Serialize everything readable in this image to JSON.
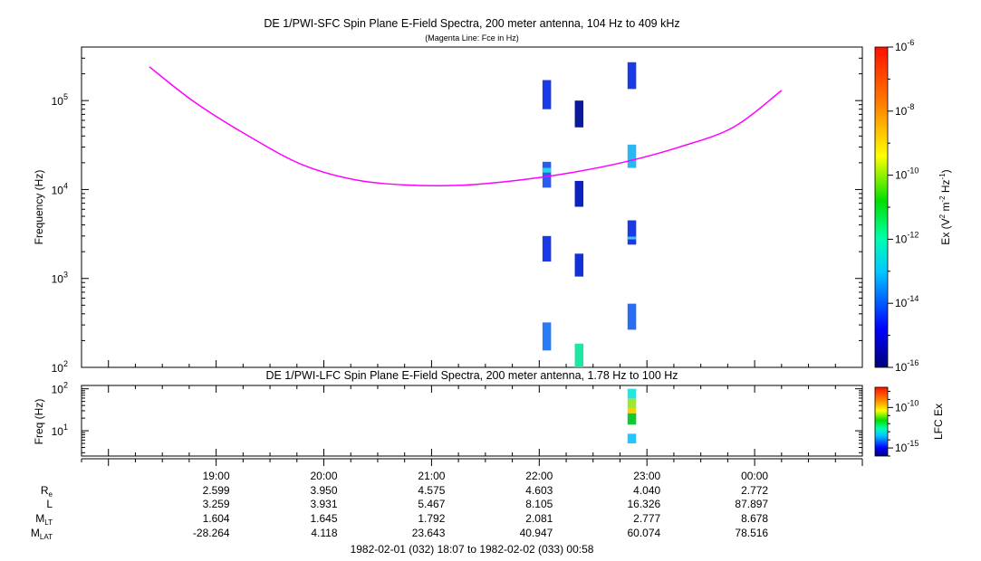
{
  "chart_data": [
    {
      "type": "heatmap",
      "title": "DE 1/PWI-SFC  Spin Plane E-Field Spectra, 200 meter antenna, 104 Hz to 409 kHz",
      "subtitle": "(Magenta Line: Fce in Hz)",
      "ylabel": "Frequency (Hz)",
      "yscale": "log",
      "ylim": [
        100,
        400000
      ],
      "yticks": [
        {
          "v": 100,
          "e": "2"
        },
        {
          "v": 1000,
          "e": "3"
        },
        {
          "v": 10000,
          "e": "4"
        },
        {
          "v": 100000,
          "e": "5"
        }
      ],
      "xlim": [
        -1.25,
        6.0
      ],
      "colorbar": {
        "label_prefix": "Ex (V",
        "label_sup1": "2",
        "label_mid": " m",
        "label_sup2": "-2",
        "label_mid2": " Hz",
        "label_sup3": "-1",
        "label_suffix": ")",
        "scale": "log",
        "range_exp": [
          -16,
          -6
        ],
        "ticks": [
          {
            "e": "-6",
            "v": -6
          },
          {
            "e": "-8",
            "v": -8
          },
          {
            "e": "-10",
            "v": -10
          },
          {
            "e": "-12",
            "v": -12
          },
          {
            "e": "-14",
            "v": -14
          },
          {
            "e": "-16",
            "v": -16
          }
        ]
      },
      "fce_line": {
        "color": "#ff00ff",
        "name": "Fce",
        "points": [
          [
            -0.62,
            240000
          ],
          [
            -0.2,
            96000
          ],
          [
            0.3,
            40000
          ],
          [
            0.8,
            19000
          ],
          [
            1.3,
            12800
          ],
          [
            1.8,
            11200
          ],
          [
            2.3,
            11200
          ],
          [
            2.8,
            12700
          ],
          [
            3.3,
            15500
          ],
          [
            3.8,
            20500
          ],
          [
            4.3,
            30000
          ],
          [
            4.8,
            50000
          ],
          [
            5.25,
            130000
          ]
        ]
      },
      "cells": [
        {
          "x0": 3.03,
          "x1": 3.11,
          "y0": 80000,
          "y1": 170000,
          "color": "#1a3ae6"
        },
        {
          "x0": 3.03,
          "x1": 3.11,
          "y0": 10500,
          "y1": 20500,
          "color": "#2a5cf2"
        },
        {
          "x0": 3.03,
          "x1": 3.11,
          "y0": 15500,
          "y1": 17500,
          "color": "#2ad4e6"
        },
        {
          "x0": 3.03,
          "x1": 3.11,
          "y0": 1550,
          "y1": 3000,
          "color": "#1a3ae6"
        },
        {
          "x0": 3.03,
          "x1": 3.11,
          "y0": 155,
          "y1": 320,
          "color": "#2a7cf5"
        },
        {
          "x0": 3.33,
          "x1": 3.41,
          "y0": 50000,
          "y1": 100000,
          "color": "#0a1a9a"
        },
        {
          "x0": 3.33,
          "x1": 3.41,
          "y0": 6400,
          "y1": 12500,
          "color": "#0d22c0"
        },
        {
          "x0": 3.33,
          "x1": 3.41,
          "y0": 1050,
          "y1": 1900,
          "color": "#1230d8"
        },
        {
          "x0": 3.33,
          "x1": 3.41,
          "y0": 100,
          "y1": 185,
          "color": "#1ee8a0"
        },
        {
          "x0": 3.82,
          "x1": 3.9,
          "y0": 135000,
          "y1": 270000,
          "color": "#1a3ae6"
        },
        {
          "x0": 3.82,
          "x1": 3.9,
          "y0": 17500,
          "y1": 32000,
          "color": "#2ab8f0"
        },
        {
          "x0": 3.82,
          "x1": 3.9,
          "y0": 2400,
          "y1": 4500,
          "color": "#1a3ae6"
        },
        {
          "x0": 3.82,
          "x1": 3.9,
          "y0": 2750,
          "y1": 2950,
          "color": "#40c0ff"
        },
        {
          "x0": 3.82,
          "x1": 3.9,
          "y0": 265,
          "y1": 520,
          "color": "#2a6cf2"
        }
      ]
    },
    {
      "type": "heatmap",
      "title": "DE 1/PWI-LFC  Spin Plane E-Field Spectra, 200 meter antenna, 1.78 Hz to 100 Hz",
      "ylabel": "Freq (Hz)",
      "yscale": "log",
      "ylim": [
        2.5,
        120
      ],
      "yticks": [
        {
          "v": 10,
          "e": "1"
        },
        {
          "v": 100,
          "e": "2"
        }
      ],
      "xlim": [
        -1.25,
        6.0
      ],
      "colorbar": {
        "label": "LFC Ex",
        "scale": "log",
        "range_exp": [
          -16,
          -7.5
        ],
        "ticks": [
          {
            "e": "-10",
            "v": -10
          },
          {
            "e": "-15",
            "v": -15
          }
        ]
      },
      "cells": [
        {
          "x0": 3.82,
          "x1": 3.9,
          "y0": 58,
          "y1": 100,
          "color": "#20e8e0"
        },
        {
          "x0": 3.82,
          "x1": 3.9,
          "y0": 34,
          "y1": 58,
          "color": "#a0e830"
        },
        {
          "x0": 3.82,
          "x1": 3.9,
          "y0": 26,
          "y1": 34,
          "color": "#ffd000"
        },
        {
          "x0": 3.82,
          "x1": 3.9,
          "y0": 14,
          "y1": 26,
          "color": "#10c830"
        },
        {
          "x0": 3.82,
          "x1": 3.9,
          "y0": 5,
          "y1": 8.5,
          "color": "#20c8ff"
        }
      ]
    }
  ],
  "time_axis": {
    "ticks": [
      "19:00",
      "20:00",
      "21:00",
      "22:00",
      "23:00",
      "00:00"
    ],
    "rows": [
      {
        "label": "R",
        "sub": "e",
        "values": [
          "2.599",
          "3.950",
          "4.575",
          "4.603",
          "4.040",
          "2.772"
        ]
      },
      {
        "label": "L",
        "sub": "",
        "values": [
          "3.259",
          "3.931",
          "5.467",
          "8.105",
          "16.326",
          "87.897"
        ]
      },
      {
        "label": "M",
        "sub": "LT",
        "values": [
          "1.604",
          "1.645",
          "1.792",
          "2.081",
          "2.777",
          "8.678"
        ]
      },
      {
        "label": "M",
        "sub": "LAT",
        "values": [
          "-28.264",
          "4.118",
          "23.643",
          "40.947",
          "60.074",
          "78.516"
        ]
      }
    ],
    "range_label": "1982-02-01 (032) 18:07 to 1982-02-02 (033) 00:58"
  },
  "colors": {
    "fce": "#ff00ff",
    "axis": "#000000",
    "background": "#ffffff"
  }
}
